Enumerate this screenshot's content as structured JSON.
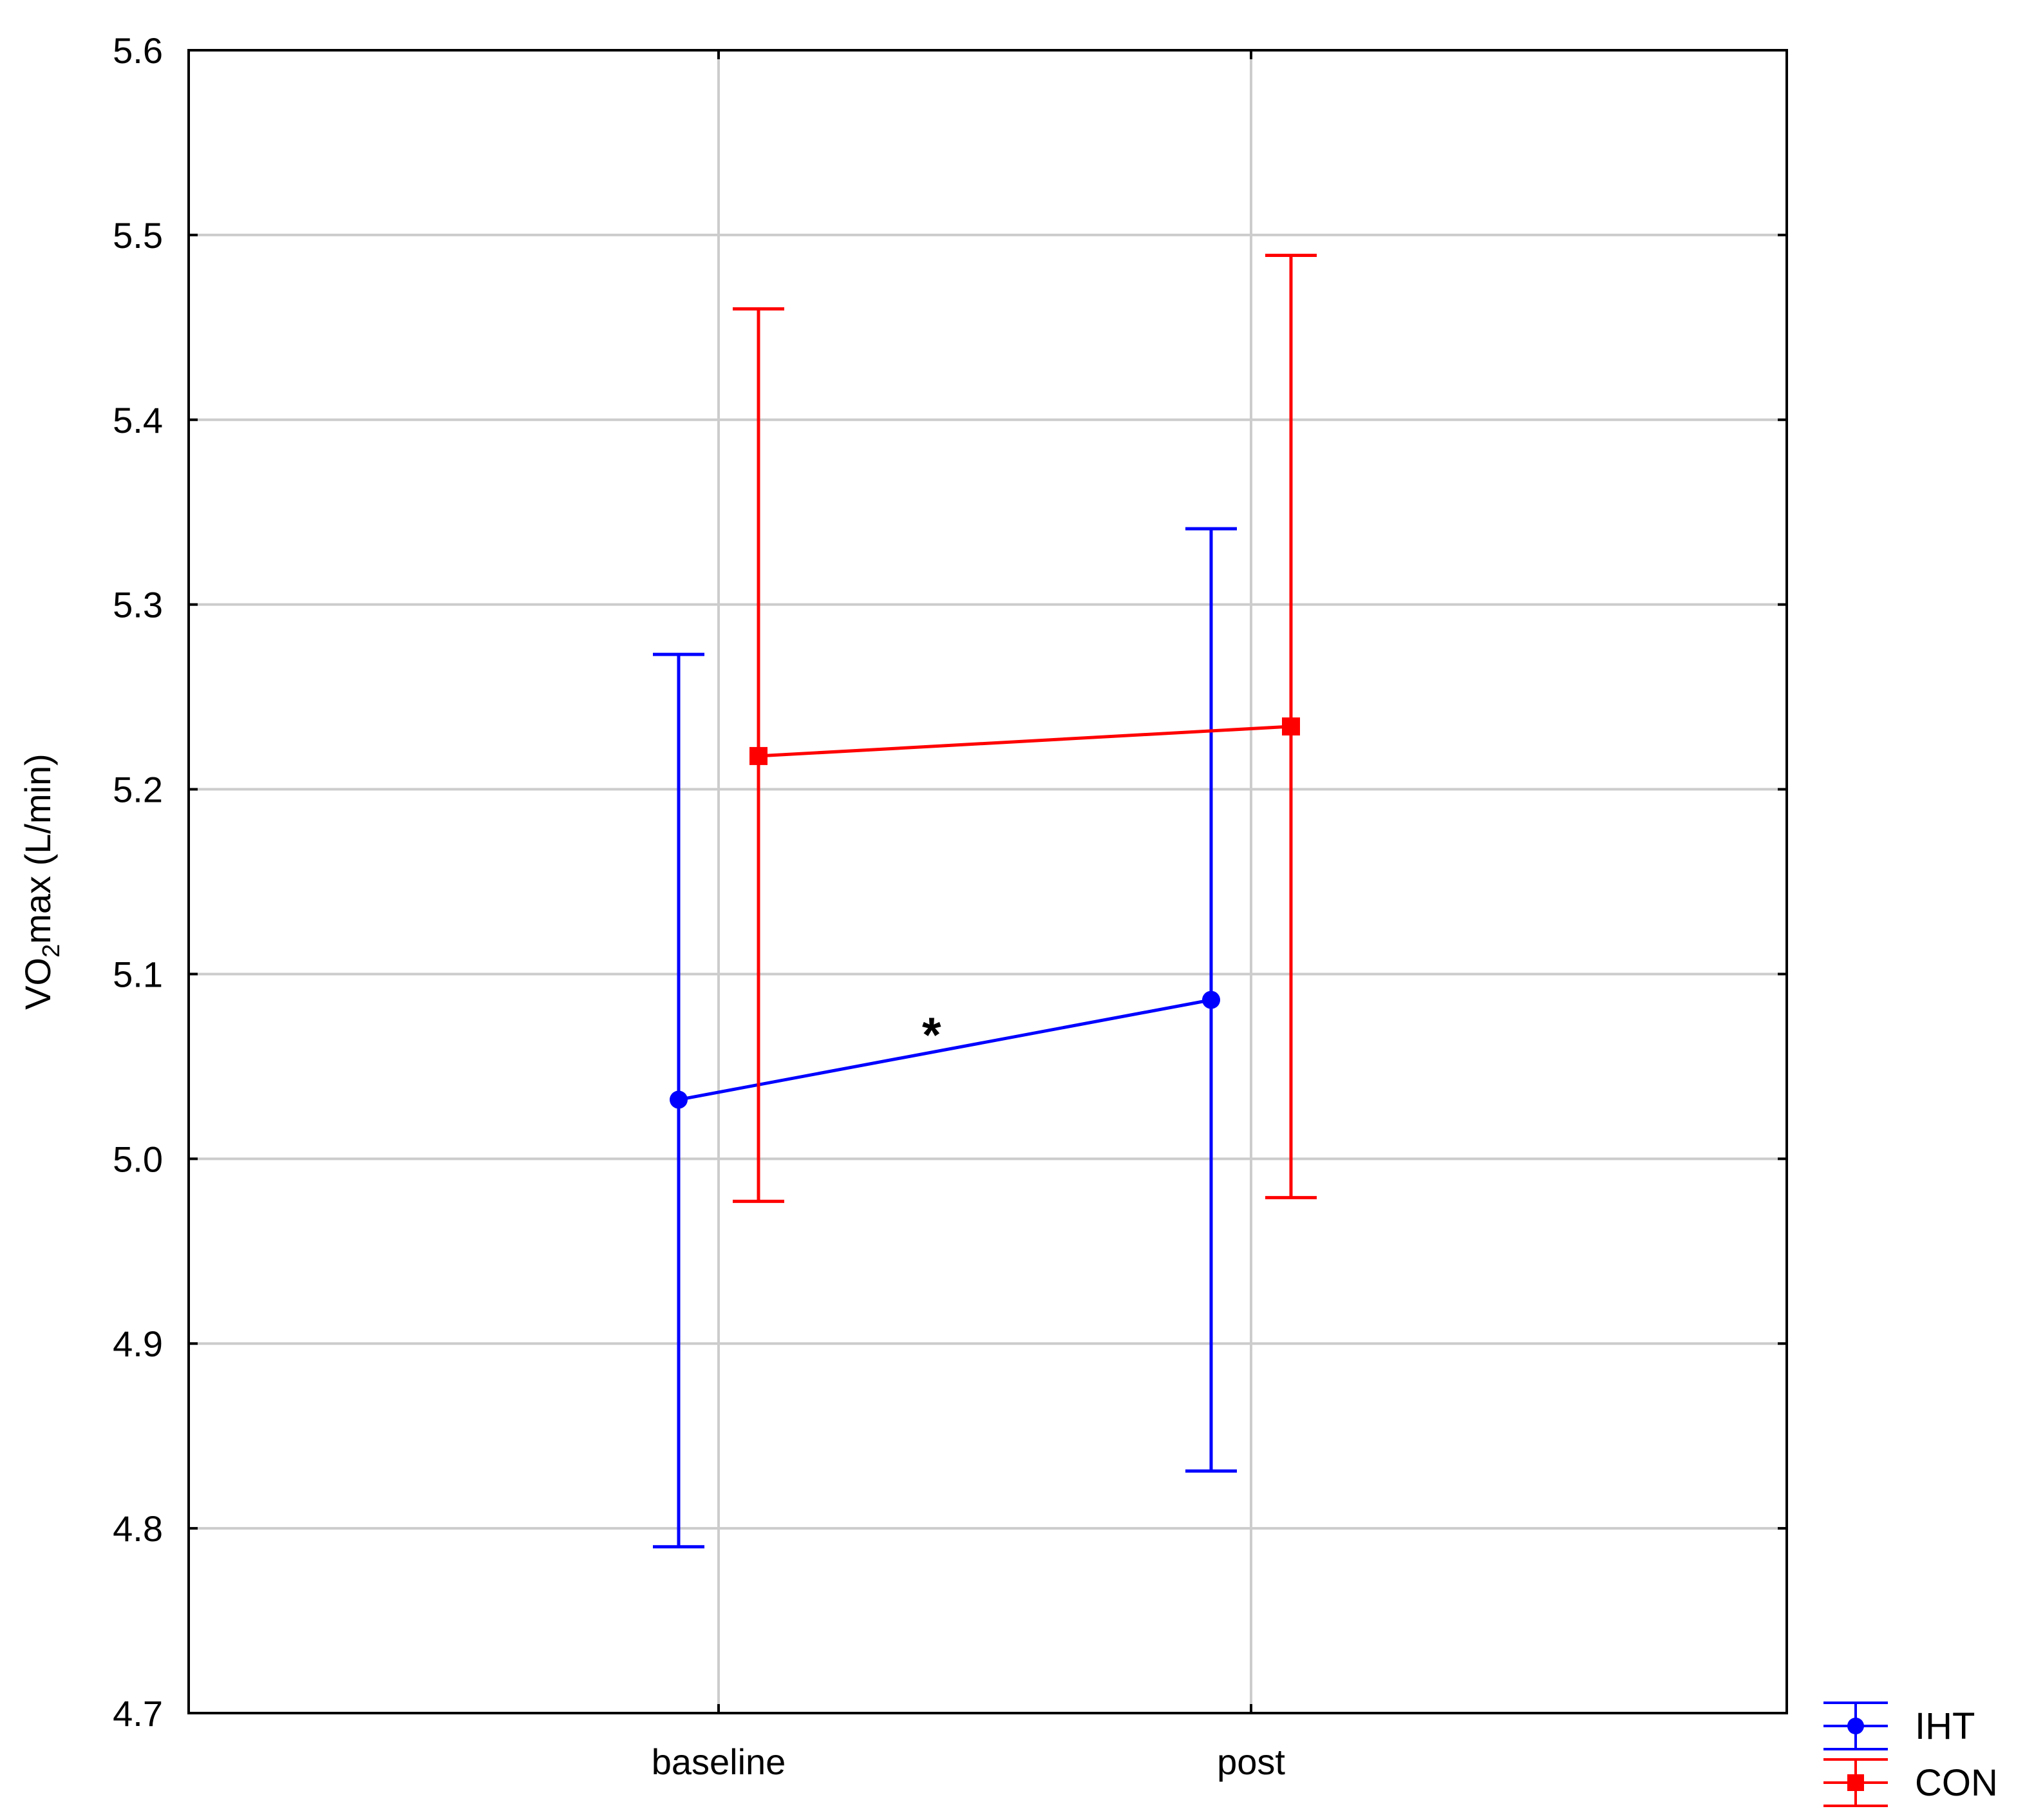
{
  "chart_data": {
    "type": "line",
    "title": "",
    "xlabel": "",
    "ylabel_main": "VO",
    "ylabel_sub": "2",
    "ylabel_rest": "max (L/min)",
    "categories": [
      "baseline",
      "post"
    ],
    "ylim": [
      4.7,
      5.6
    ],
    "yticks": [
      "4.7",
      "4.8",
      "4.9",
      "5.0",
      "5.1",
      "5.2",
      "5.3",
      "5.4",
      "5.5",
      "5.6"
    ],
    "grid": true,
    "legend_position": "bottom-right",
    "series": [
      {
        "name": "IHT",
        "color": "#0000ff",
        "marker": "circle",
        "values": [
          5.032,
          5.086
        ],
        "err_low": [
          4.79,
          4.831
        ],
        "err_high": [
          5.273,
          5.341
        ]
      },
      {
        "name": "CON",
        "color": "#ff0000",
        "marker": "square",
        "values": [
          5.218,
          5.234
        ],
        "err_low": [
          4.977,
          4.979
        ],
        "err_high": [
          5.46,
          5.489
        ]
      }
    ],
    "annotations": [
      {
        "text": "*",
        "x": 0.4,
        "y": 5.065
      }
    ]
  }
}
